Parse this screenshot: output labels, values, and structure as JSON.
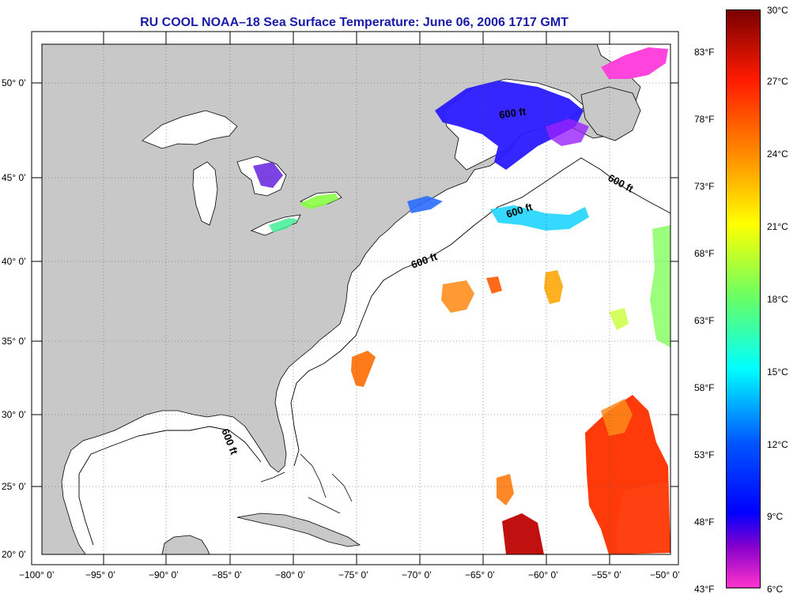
{
  "title": "RU COOL  NOAA–18  Sea Surface Temperature:  June 06, 2006 1717 GMT",
  "colors": {
    "land": "#c8c8c8",
    "ocean": "#ffffff",
    "title": "#1a1aa8"
  },
  "lat_labels": [
    "50° 0’",
    "45° 0’",
    "40° 0’",
    "35° 0’",
    "30° 0’",
    "25° 0’",
    "20° 0’"
  ],
  "lon_labels": [
    "−100° 0’",
    "−95° 0’",
    "−90° 0’",
    "−85° 0’",
    "−80° 0’",
    "−75° 0’",
    "−70° 0’",
    "−65° 0’",
    "−60° 0’",
    "−55° 0’",
    "−50° 0’"
  ],
  "contour_labels": [
    "600 ft",
    "600 ft",
    "600 ft",
    "600 ft",
    "600 ft"
  ],
  "colorbar": {
    "fahrenheit": [
      "83°F",
      "78°F",
      "73°F",
      "68°F",
      "63°F",
      "58°F",
      "53°F",
      "48°F",
      "43°F"
    ],
    "celsius": [
      "30°C",
      "27°C",
      "24°C",
      "21°C",
      "18°C",
      "15°C",
      "12°C",
      "9°C",
      "6°C"
    ]
  }
}
